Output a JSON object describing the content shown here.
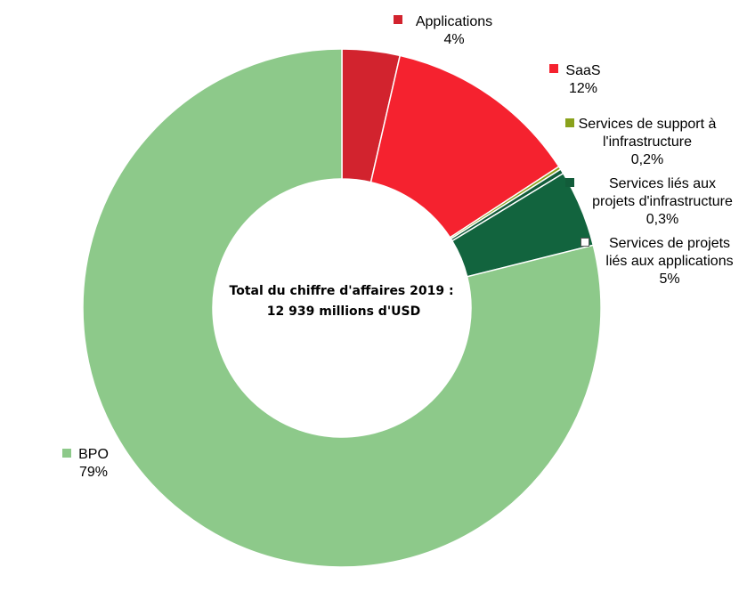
{
  "chart_data": {
    "type": "pie",
    "donut": true,
    "center_text": [
      "Total du chiffre d'affaires 2019 :",
      "12 939 millions d'USD"
    ],
    "slices": [
      {
        "label_lines": [
          "Applications"
        ],
        "value_label": "4%",
        "value": 3.6,
        "color": "#d2232e",
        "marker_color": "#d2232e"
      },
      {
        "label_lines": [
          "SaaS"
        ],
        "value_label": "12%",
        "value": 12.2,
        "color": "#f5222f",
        "marker_color": "#f5222f"
      },
      {
        "label_lines": [
          "Services de support à",
          "l'infrastructure"
        ],
        "value_label": "0,2%",
        "value": 0.2,
        "color": "#8aa21c",
        "marker_color": "#8aa21c"
      },
      {
        "label_lines": [
          "Services liés aux",
          "projets d'infrastructure"
        ],
        "value_label": "0,3%",
        "value": 0.3,
        "color": "#125c3a",
        "marker_color": "#125c3a"
      },
      {
        "label_lines": [
          "Services de projets",
          "liés aux applications"
        ],
        "value_label": "5%",
        "value": 4.8,
        "color": "#12643e",
        "marker_color": "#ffffff"
      },
      {
        "label_lines": [
          "BPO"
        ],
        "value_label": "79%",
        "value": 78.9,
        "color": "#8dc98a",
        "marker_color": "#8dc98a"
      }
    ]
  }
}
